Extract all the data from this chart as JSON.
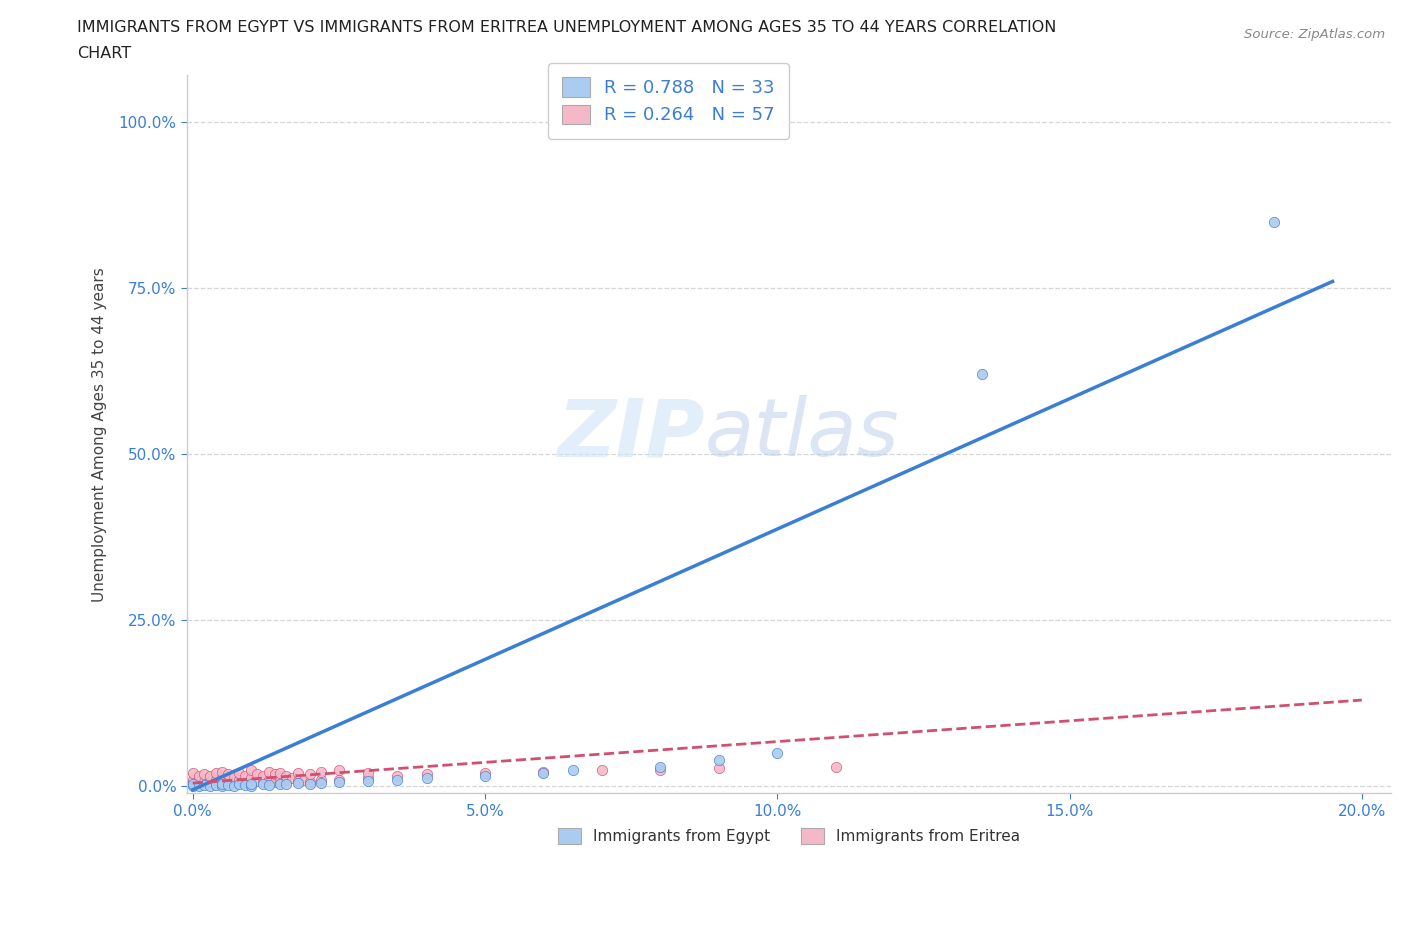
{
  "title_line1": "IMMIGRANTS FROM EGYPT VS IMMIGRANTS FROM ERITREA UNEMPLOYMENT AMONG AGES 35 TO 44 YEARS CORRELATION",
  "title_line2": "CHART",
  "source_text": "Source: ZipAtlas.com",
  "ylabel": "Unemployment Among Ages 35 to 44 years",
  "xlim": [
    -0.001,
    0.205
  ],
  "ylim": [
    -0.01,
    1.07
  ],
  "xtick_vals": [
    0.0,
    0.05,
    0.1,
    0.15,
    0.2
  ],
  "xtick_labels": [
    "0.0%",
    "5.0%",
    "10.0%",
    "15.0%",
    "20.0%"
  ],
  "ytick_vals": [
    0.0,
    0.25,
    0.5,
    0.75,
    1.0
  ],
  "ytick_labels": [
    "0.0%",
    "25.0%",
    "50.0%",
    "75.0%",
    "100.0%"
  ],
  "watermark_ZIP": "ZIP",
  "watermark_atlas": "atlas",
  "egypt_color": "#aaccf0",
  "eritrea_color": "#f5b8c8",
  "egypt_line_color": "#3a7fd5",
  "eritrea_line_color": "#d05070",
  "egypt_R": 0.788,
  "egypt_N": 33,
  "eritrea_R": 0.264,
  "eritrea_N": 57,
  "legend_label_egypt": "Immigrants from Egypt",
  "legend_label_eritrea": "Immigrants from Eritrea",
  "egypt_x": [
    0.0,
    0.0,
    0.001,
    0.002,
    0.003,
    0.004,
    0.005,
    0.005,
    0.006,
    0.007,
    0.008,
    0.009,
    0.01,
    0.01,
    0.012,
    0.013,
    0.015,
    0.016,
    0.018,
    0.02,
    0.022,
    0.025,
    0.03,
    0.035,
    0.04,
    0.05,
    0.06,
    0.065,
    0.08,
    0.09,
    0.1,
    0.135,
    0.185
  ],
  "egypt_y": [
    0.0,
    0.003,
    0.001,
    0.002,
    0.001,
    0.002,
    0.001,
    0.003,
    0.002,
    0.001,
    0.003,
    0.002,
    0.001,
    0.004,
    0.003,
    0.002,
    0.004,
    0.003,
    0.005,
    0.004,
    0.005,
    0.007,
    0.008,
    0.01,
    0.012,
    0.015,
    0.02,
    0.025,
    0.03,
    0.04,
    0.05,
    0.62,
    0.85
  ],
  "eritrea_x": [
    0.0,
    0.0,
    0.0,
    0.001,
    0.001,
    0.002,
    0.002,
    0.003,
    0.003,
    0.004,
    0.004,
    0.005,
    0.005,
    0.005,
    0.006,
    0.006,
    0.007,
    0.007,
    0.008,
    0.008,
    0.009,
    0.009,
    0.01,
    0.01,
    0.01,
    0.011,
    0.011,
    0.012,
    0.012,
    0.013,
    0.013,
    0.014,
    0.014,
    0.015,
    0.015,
    0.016,
    0.016,
    0.017,
    0.018,
    0.018,
    0.019,
    0.02,
    0.02,
    0.022,
    0.022,
    0.025,
    0.025,
    0.03,
    0.03,
    0.035,
    0.04,
    0.05,
    0.06,
    0.07,
    0.08,
    0.09,
    0.11
  ],
  "eritrea_y": [
    0.005,
    0.01,
    0.02,
    0.008,
    0.015,
    0.006,
    0.018,
    0.007,
    0.016,
    0.009,
    0.02,
    0.005,
    0.012,
    0.022,
    0.008,
    0.018,
    0.006,
    0.014,
    0.01,
    0.02,
    0.007,
    0.016,
    0.005,
    0.012,
    0.025,
    0.008,
    0.018,
    0.006,
    0.016,
    0.01,
    0.022,
    0.007,
    0.018,
    0.008,
    0.02,
    0.009,
    0.016,
    0.012,
    0.008,
    0.02,
    0.01,
    0.007,
    0.018,
    0.009,
    0.022,
    0.01,
    0.025,
    0.012,
    0.02,
    0.015,
    0.018,
    0.02,
    0.022,
    0.025,
    0.025,
    0.028,
    0.03
  ],
  "egypt_line_x": [
    0.0,
    0.195
  ],
  "egypt_line_y": [
    -0.005,
    0.76
  ],
  "eritrea_line_x": [
    0.0,
    0.2
  ],
  "eritrea_line_y": [
    0.005,
    0.13
  ]
}
